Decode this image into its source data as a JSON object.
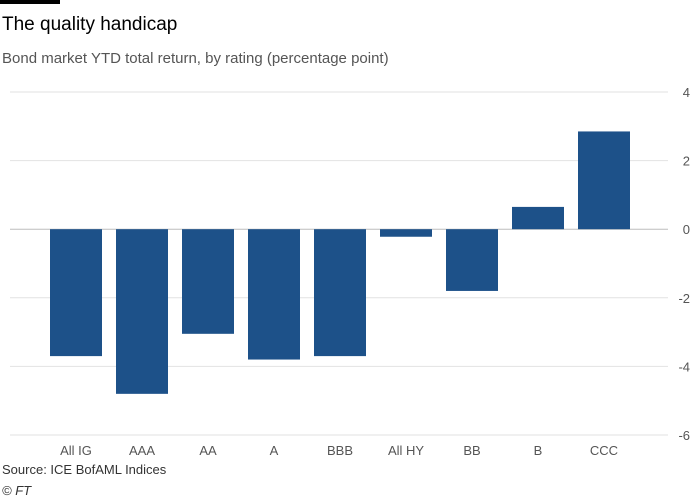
{
  "chart_data": {
    "type": "bar",
    "title": "The quality handicap",
    "subtitle": "Bond market YTD total return, by rating (percentage point)",
    "categories": [
      "All IG",
      "AAA",
      "AA",
      "A",
      "BBB",
      "All HY",
      "BB",
      "B",
      "CCC"
    ],
    "values": [
      -3.7,
      -4.8,
      -3.05,
      -3.8,
      -3.7,
      -0.22,
      -1.8,
      0.65,
      2.85
    ],
    "xlabel": "",
    "ylabel": "",
    "ylim": [
      -6,
      4
    ],
    "yticks": [
      4,
      2,
      0,
      -2,
      -4,
      -6
    ],
    "grid": true,
    "bar_color": "#1d5189",
    "source": "Source: ICE BofAML Indices",
    "copyright": "© FT"
  }
}
